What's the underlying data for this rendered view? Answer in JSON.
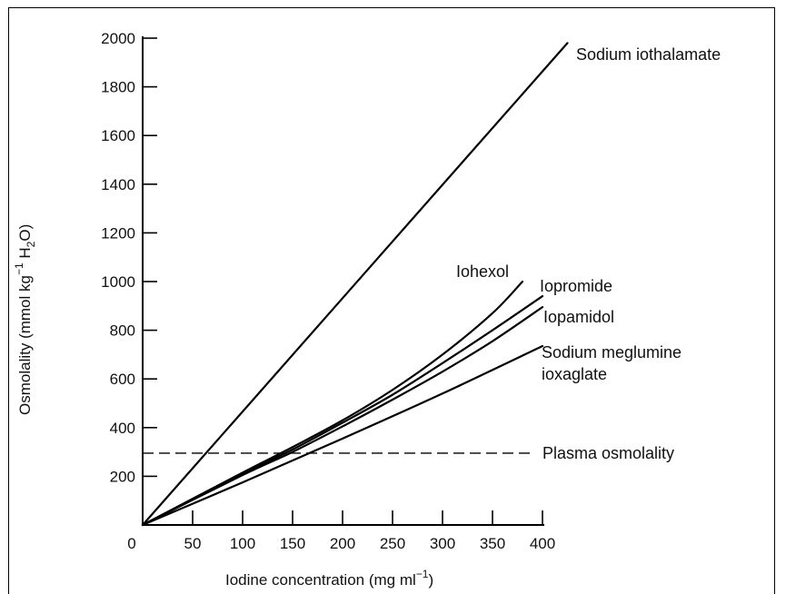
{
  "chart_data": {
    "type": "line",
    "xlabel": "Iodine concentration (mg ml",
    "xlabel_sup": "−1",
    "xlabel_end": ")",
    "ylabel_parts": [
      "Osmolality (mmol kg",
      "−1",
      " H",
      "2",
      "O)"
    ],
    "xlim": [
      0,
      400
    ],
    "ylim": [
      0,
      2000
    ],
    "xticks": [
      0,
      50,
      100,
      150,
      200,
      250,
      300,
      350,
      400
    ],
    "yticks": [
      200,
      400,
      600,
      800,
      1000,
      1200,
      1400,
      1600,
      1800,
      2000
    ],
    "grid": false,
    "series": [
      {
        "name": "Sodium iothalamate",
        "points": [
          [
            0,
            0
          ],
          [
            425,
            1980
          ]
        ]
      },
      {
        "name": "Iohexol",
        "points": [
          [
            0,
            0
          ],
          [
            100,
            215
          ],
          [
            150,
            320
          ],
          [
            200,
            430
          ],
          [
            250,
            555
          ],
          [
            300,
            700
          ],
          [
            350,
            870
          ],
          [
            380,
            1000
          ]
        ]
      },
      {
        "name": "Iopromide",
        "points": [
          [
            0,
            0
          ],
          [
            100,
            210
          ],
          [
            150,
            310
          ],
          [
            200,
            420
          ],
          [
            250,
            535
          ],
          [
            300,
            665
          ],
          [
            350,
            800
          ],
          [
            400,
            940
          ]
        ]
      },
      {
        "name": "Iopamidol",
        "points": [
          [
            0,
            0
          ],
          [
            100,
            205
          ],
          [
            150,
            300
          ],
          [
            200,
            405
          ],
          [
            250,
            515
          ],
          [
            300,
            630
          ],
          [
            350,
            755
          ],
          [
            400,
            895
          ]
        ]
      },
      {
        "name_lines": [
          "Sodium meglumine",
          "ioxaglate"
        ],
        "points": [
          [
            0,
            0
          ],
          [
            100,
            175
          ],
          [
            200,
            355
          ],
          [
            300,
            540
          ],
          [
            400,
            735
          ]
        ]
      }
    ],
    "reference_lines": [
      {
        "name": "Plasma osmolality",
        "y": 295,
        "style": "dashed"
      }
    ]
  }
}
